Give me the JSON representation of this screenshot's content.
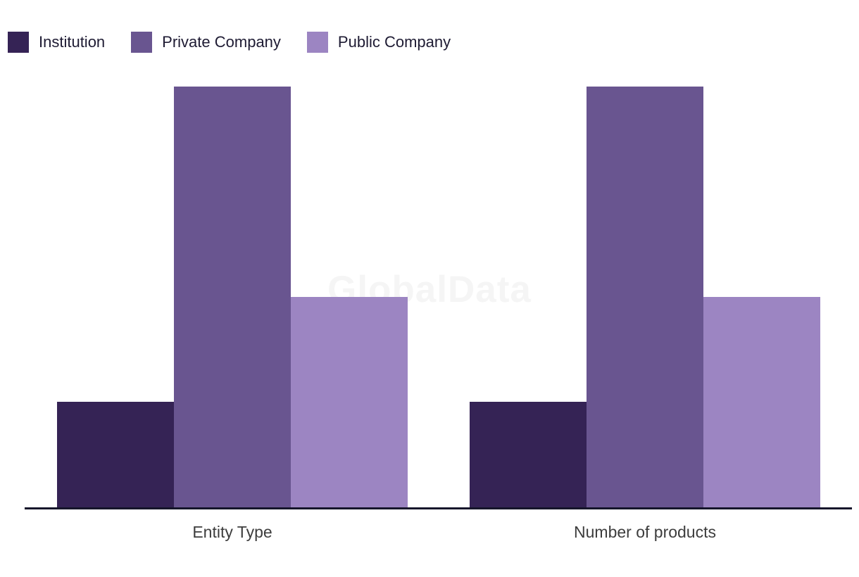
{
  "watermark": "GlobalData",
  "chart_data": {
    "type": "bar",
    "title": "",
    "xlabel": "",
    "ylabel": "",
    "categories": [
      "Entity Type",
      "Number of products"
    ],
    "series": [
      {
        "name": "Institution",
        "color": "#352355",
        "values": [
          1,
          1
        ]
      },
      {
        "name": "Private Company",
        "color": "#695590",
        "values": [
          4,
          4
        ]
      },
      {
        "name": "Public Company",
        "color": "#9C85C2",
        "values": [
          2,
          2
        ]
      }
    ],
    "ylim": [
      0,
      4
    ],
    "y_axis_visible": false,
    "grid": false,
    "legend_position": "top-left"
  },
  "colors": {
    "background": "#ffffff",
    "axis_line": "#16162b",
    "axis_label_text": "#3d3d3d",
    "legend_label_text": "#1e1b33",
    "watermark_text": "#f5f5f5"
  }
}
